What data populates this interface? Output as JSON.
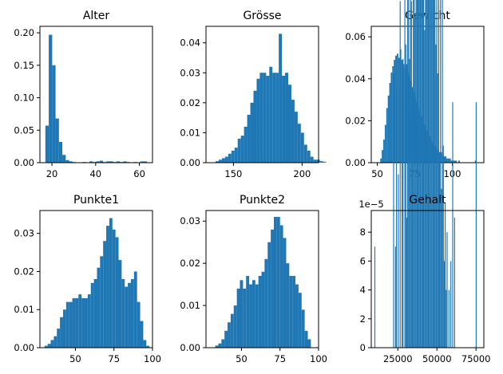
{
  "colors": {
    "bar": "#1f77b4"
  },
  "chart_data": [
    {
      "type": "bar",
      "title": "Alter",
      "grid": false,
      "xlim": [
        14.5,
        66
      ],
      "ylim": [
        0,
        0.21
      ],
      "bin_start": 17,
      "bin_width": 1.55,
      "values": [
        0.057,
        0.197,
        0.15,
        0.068,
        0.032,
        0.012,
        0.004,
        0.002,
        0.001,
        0,
        0,
        0.001,
        0,
        0.002,
        0.001,
        0.002,
        0.003,
        0.001,
        0.002,
        0.002,
        0.001,
        0.002,
        0.001,
        0.002,
        0.001,
        0,
        0.001,
        0,
        0.002,
        0.002
      ],
      "xticks": [
        20,
        40,
        60
      ],
      "xtick_labels": [
        "20",
        "40",
        "60"
      ],
      "yticks": [
        0,
        0.05,
        0.1,
        0.15,
        0.2
      ],
      "ytick_labels": [
        "0.00",
        "0.05",
        "0.10",
        "0.15",
        "0.20"
      ]
    },
    {
      "type": "bar",
      "title": "Grösse",
      "grid": false,
      "xlim": [
        130,
        212
      ],
      "ylim": [
        0,
        0.0455
      ],
      "bin_start": 137,
      "bin_width": 2.3,
      "values": [
        0.0005,
        0.001,
        0.0015,
        0.002,
        0.003,
        0.004,
        0.005,
        0.008,
        0.009,
        0.012,
        0.016,
        0.02,
        0.024,
        0.028,
        0.03,
        0.03,
        0.029,
        0.032,
        0.03,
        0.03,
        0.043,
        0.029,
        0.03,
        0.026,
        0.021,
        0.017,
        0.013,
        0.01,
        0.006,
        0.004,
        0.002,
        0.001,
        0.001,
        0.0005,
        0.0003
      ],
      "xticks": [
        150,
        200
      ],
      "xtick_labels": [
        "150",
        "200"
      ],
      "yticks": [
        0,
        0.01,
        0.02,
        0.03,
        0.04
      ],
      "ytick_labels": [
        "0.00",
        "0.01",
        "0.02",
        "0.03",
        "0.04"
      ]
    },
    {
      "type": "bar",
      "title": "Gewicht",
      "grid": false,
      "xlim": [
        46,
        121
      ],
      "ylim": [
        0,
        0.065
      ],
      "bin_start": 52,
      "bin_width": 1.0,
      "values": [
        0.002,
        0.006,
        0.011,
        0.018,
        0.026,
        0.032,
        0.038,
        0.043,
        0.046,
        0.049,
        0.051,
        0.052,
        0.05,
        0.054,
        0.049,
        0.047,
        0.045,
        0.047,
        0.043,
        0.041,
        0.039,
        0.036,
        0.034,
        0.031,
        0.029,
        0.026,
        0.024,
        0.022,
        0.02,
        0.018,
        0.016,
        0.015,
        0.013,
        0.012,
        0.01,
        0.009,
        0.008,
        0.007,
        0.006,
        0.005,
        0.005,
        0.004,
        0.003,
        0.003,
        0.002,
        0.002,
        0.002,
        0.001,
        0.001,
        0.001,
        0.001,
        0,
        0.001,
        0,
        0,
        0,
        0,
        0,
        0,
        0,
        0,
        0,
        0,
        0.001
      ],
      "xticks": [
        50,
        75,
        100
      ],
      "xtick_labels": [
        "50",
        "75",
        "100"
      ],
      "yticks": [
        0,
        0.02,
        0.04,
        0.06
      ],
      "ytick_labels": [
        "0.00",
        "0.02",
        "0.04",
        "0.06"
      ]
    },
    {
      "type": "bar",
      "title": "Punkte1",
      "grid": false,
      "xlim": [
        27,
        100
      ],
      "ylim": [
        0,
        0.036
      ],
      "bin_start": 30,
      "bin_width": 2.0,
      "values": [
        0.0005,
        0.001,
        0.002,
        0.003,
        0.005,
        0.008,
        0.01,
        0.012,
        0.012,
        0.013,
        0.013,
        0.014,
        0.013,
        0.013,
        0.014,
        0.017,
        0.018,
        0.021,
        0.024,
        0.028,
        0.032,
        0.034,
        0.031,
        0.029,
        0.023,
        0.018,
        0.016,
        0.017,
        0.018,
        0.02,
        0.012,
        0.007,
        0.002,
        0.0005
      ],
      "xticks": [
        50,
        75,
        100
      ],
      "xtick_labels": [
        "50",
        "75",
        "100"
      ],
      "yticks": [
        0,
        0.01,
        0.02,
        0.03
      ],
      "ytick_labels": [
        "0.00",
        "0.01",
        "0.02",
        "0.03"
      ]
    },
    {
      "type": "bar",
      "title": "Punkte2",
      "grid": false,
      "xlim": [
        27,
        100
      ],
      "ylim": [
        0,
        0.0325
      ],
      "bin_start": 33,
      "bin_width": 2.0,
      "values": [
        0.0005,
        0.001,
        0.002,
        0.004,
        0.006,
        0.008,
        0.01,
        0.014,
        0.016,
        0.014,
        0.017,
        0.015,
        0.016,
        0.015,
        0.017,
        0.018,
        0.021,
        0.025,
        0.028,
        0.031,
        0.031,
        0.029,
        0.026,
        0.02,
        0.017,
        0.017,
        0.015,
        0.013,
        0.009,
        0.004,
        0.002
      ],
      "xticks": [
        50,
        75,
        100
      ],
      "xtick_labels": [
        "50",
        "75",
        "100"
      ],
      "yticks": [
        0,
        0.01,
        0.02,
        0.03
      ],
      "ytick_labels": [
        "0.00",
        "0.01",
        "0.02",
        "0.03"
      ]
    },
    {
      "type": "bar",
      "title": "Gehalt",
      "grid": false,
      "xlim": [
        8000,
        80000
      ],
      "ylim": [
        0,
        9.5e-06
      ],
      "offset_text": "1e−5",
      "bin_start": 10000,
      "bin_width": 600,
      "values": [
        0.7,
        0,
        0,
        0,
        0,
        0,
        0,
        0,
        0,
        0,
        0,
        0,
        0,
        0,
        0,
        0,
        0,
        0,
        0,
        0,
        1.9,
        0,
        0.7,
        1.8,
        0,
        1.2,
        0,
        2.4,
        0,
        1.3,
        2.0,
        0,
        3.2,
        2.1,
        0.9,
        2.8,
        3.5,
        2.0,
        4.7,
        2.4,
        1.6,
        3.7,
        4.6,
        2.3,
        5.3,
        2.6,
        4.3,
        6.4,
        3.2,
        5.8,
        2.7,
        7.8,
        4.1,
        2.2,
        6.7,
        3.5,
        5.5,
        4.3,
        6.4,
        2.5,
        5.4,
        3.3,
        2.6,
        4.6,
        3.0,
        2.1,
        3.5,
        1.9,
        2.8,
        1.3,
        3.1,
        1.1,
        2.5,
        1.4,
        0.6,
        1.0,
        0.4,
        0.8,
        0,
        0.4,
        0,
        0.6,
        0,
        1.7,
        0,
        0.9,
        0,
        0,
        0,
        0,
        0,
        0,
        0,
        0,
        0,
        0,
        0,
        0,
        0,
        0,
        0,
        0,
        0,
        0,
        0,
        0,
        0,
        0,
        1.7
      ],
      "xticks": [
        25000,
        50000,
        75000
      ],
      "xtick_labels": [
        "25000",
        "50000",
        "75000"
      ],
      "yticks": [
        0,
        2e-06,
        4e-06,
        6e-06,
        8e-06
      ],
      "ytick_labels": [
        "0",
        "2",
        "4",
        "6",
        "8"
      ]
    }
  ]
}
